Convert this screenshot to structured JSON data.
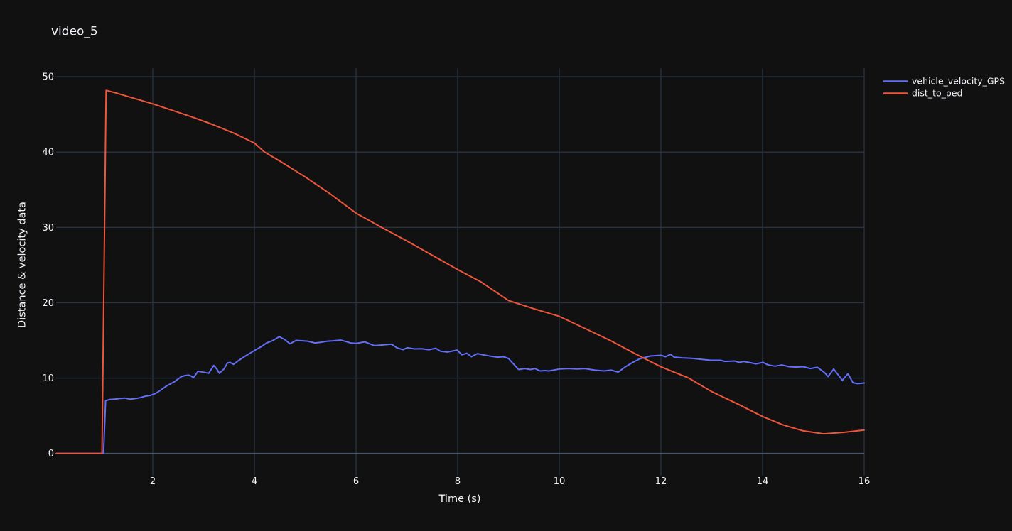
{
  "title": "video_5",
  "axes": {
    "x_title": "Time (s)",
    "y_title": "Distance & velocity data"
  },
  "legend": {
    "items": [
      {
        "label": "vehicle_velocity_GPS",
        "color": "#636efa"
      },
      {
        "label": "dist_to_ped",
        "color": "#ef553b"
      }
    ]
  },
  "chart_data": {
    "type": "line",
    "title": "video_5",
    "xlabel": "Time (s)",
    "ylabel": "Distance & velocity data",
    "xlim": [
      0.1,
      16
    ],
    "ylim": [
      -2.92,
      51.1
    ],
    "x_ticks": [
      2,
      4,
      6,
      8,
      10,
      12,
      14,
      16
    ],
    "y_ticks": [
      0,
      10,
      20,
      30,
      40,
      50
    ],
    "grid": true,
    "legend_position": "top-right-outside",
    "colors": {
      "background": "#111111",
      "grid": "#283442",
      "zeroline": "#46556a",
      "text": "#f2f5fa"
    },
    "series": [
      {
        "name": "vehicle_velocity_GPS",
        "color": "#636efa",
        "points": [
          [
            0.1,
            0
          ],
          [
            1.03,
            0
          ],
          [
            1.07,
            7.0
          ],
          [
            1.15,
            7.15
          ],
          [
            1.25,
            7.2
          ],
          [
            1.35,
            7.3
          ],
          [
            1.45,
            7.35
          ],
          [
            1.55,
            7.2
          ],
          [
            1.65,
            7.28
          ],
          [
            1.75,
            7.4
          ],
          [
            1.85,
            7.6
          ],
          [
            1.95,
            7.7
          ],
          [
            2.05,
            7.95
          ],
          [
            2.15,
            8.38
          ],
          [
            2.28,
            9.0
          ],
          [
            2.42,
            9.5
          ],
          [
            2.56,
            10.2
          ],
          [
            2.63,
            10.33
          ],
          [
            2.7,
            10.4
          ],
          [
            2.76,
            10.26
          ],
          [
            2.8,
            10.05
          ],
          [
            2.89,
            10.9
          ],
          [
            2.96,
            10.83
          ],
          [
            3.03,
            10.73
          ],
          [
            3.1,
            10.64
          ],
          [
            3.2,
            11.68
          ],
          [
            3.26,
            11.2
          ],
          [
            3.31,
            10.64
          ],
          [
            3.4,
            11.2
          ],
          [
            3.47,
            12.0
          ],
          [
            3.52,
            12.08
          ],
          [
            3.59,
            11.83
          ],
          [
            3.68,
            12.3
          ],
          [
            3.82,
            12.93
          ],
          [
            4.0,
            13.65
          ],
          [
            4.14,
            14.2
          ],
          [
            4.24,
            14.66
          ],
          [
            4.35,
            14.95
          ],
          [
            4.49,
            15.5
          ],
          [
            4.6,
            15.1
          ],
          [
            4.7,
            14.55
          ],
          [
            4.82,
            15.0
          ],
          [
            4.95,
            14.95
          ],
          [
            5.05,
            14.9
          ],
          [
            5.19,
            14.66
          ],
          [
            5.3,
            14.75
          ],
          [
            5.43,
            14.9
          ],
          [
            5.55,
            14.95
          ],
          [
            5.7,
            15.04
          ],
          [
            5.89,
            14.66
          ],
          [
            6.0,
            14.6
          ],
          [
            6.17,
            14.8
          ],
          [
            6.36,
            14.3
          ],
          [
            6.55,
            14.42
          ],
          [
            6.7,
            14.5
          ],
          [
            6.8,
            14.03
          ],
          [
            6.92,
            13.77
          ],
          [
            7.01,
            14.03
          ],
          [
            7.15,
            13.87
          ],
          [
            7.29,
            13.9
          ],
          [
            7.43,
            13.77
          ],
          [
            7.57,
            13.96
          ],
          [
            7.66,
            13.56
          ],
          [
            7.8,
            13.46
          ],
          [
            7.99,
            13.72
          ],
          [
            8.08,
            13.09
          ],
          [
            8.18,
            13.3
          ],
          [
            8.27,
            12.83
          ],
          [
            8.39,
            13.25
          ],
          [
            8.5,
            13.09
          ],
          [
            8.65,
            12.9
          ],
          [
            8.78,
            12.78
          ],
          [
            8.9,
            12.83
          ],
          [
            9.0,
            12.6
          ],
          [
            9.2,
            11.14
          ],
          [
            9.32,
            11.27
          ],
          [
            9.43,
            11.14
          ],
          [
            9.52,
            11.27
          ],
          [
            9.62,
            10.95
          ],
          [
            9.71,
            11.0
          ],
          [
            9.8,
            10.95
          ],
          [
            10.0,
            11.2
          ],
          [
            10.18,
            11.27
          ],
          [
            10.35,
            11.2
          ],
          [
            10.5,
            11.27
          ],
          [
            10.7,
            11.05
          ],
          [
            10.88,
            10.95
          ],
          [
            11.02,
            11.05
          ],
          [
            11.16,
            10.8
          ],
          [
            11.3,
            11.5
          ],
          [
            11.45,
            12.1
          ],
          [
            11.58,
            12.55
          ],
          [
            11.79,
            12.93
          ],
          [
            12.0,
            13.02
          ],
          [
            12.09,
            12.83
          ],
          [
            12.19,
            13.15
          ],
          [
            12.26,
            12.78
          ],
          [
            12.42,
            12.68
          ],
          [
            12.61,
            12.62
          ],
          [
            12.84,
            12.46
          ],
          [
            12.98,
            12.36
          ],
          [
            13.17,
            12.36
          ],
          [
            13.26,
            12.21
          ],
          [
            13.45,
            12.27
          ],
          [
            13.54,
            12.08
          ],
          [
            13.63,
            12.21
          ],
          [
            13.87,
            11.89
          ],
          [
            14.01,
            12.08
          ],
          [
            14.1,
            11.77
          ],
          [
            14.24,
            11.58
          ],
          [
            14.38,
            11.74
          ],
          [
            14.52,
            11.52
          ],
          [
            14.66,
            11.46
          ],
          [
            14.8,
            11.52
          ],
          [
            14.94,
            11.27
          ],
          [
            15.08,
            11.43
          ],
          [
            15.22,
            10.73
          ],
          [
            15.29,
            10.2
          ],
          [
            15.4,
            11.2
          ],
          [
            15.57,
            9.7
          ],
          [
            15.68,
            10.57
          ],
          [
            15.78,
            9.39
          ],
          [
            15.87,
            9.26
          ],
          [
            16.0,
            9.35
          ]
        ]
      },
      {
        "name": "dist_to_ped",
        "color": "#ef553b",
        "points": [
          [
            0.1,
            0
          ],
          [
            1.0,
            0
          ],
          [
            1.08,
            48.2
          ],
          [
            1.3,
            47.8
          ],
          [
            1.6,
            47.2
          ],
          [
            2.0,
            46.4
          ],
          [
            2.4,
            45.5
          ],
          [
            2.8,
            44.6
          ],
          [
            3.2,
            43.6
          ],
          [
            3.6,
            42.5
          ],
          [
            4.0,
            41.2
          ],
          [
            4.2,
            40.0
          ],
          [
            4.5,
            38.8
          ],
          [
            5.0,
            36.7
          ],
          [
            5.5,
            34.4
          ],
          [
            6.0,
            31.9
          ],
          [
            6.5,
            30.0
          ],
          [
            7.0,
            28.2
          ],
          [
            7.5,
            26.3
          ],
          [
            8.0,
            24.4
          ],
          [
            8.45,
            22.8
          ],
          [
            9.0,
            20.3
          ],
          [
            9.5,
            19.2
          ],
          [
            10.0,
            18.2
          ],
          [
            10.5,
            16.6
          ],
          [
            11.0,
            15.0
          ],
          [
            11.5,
            13.2
          ],
          [
            12.0,
            11.5
          ],
          [
            12.55,
            10.0
          ],
          [
            13.0,
            8.2
          ],
          [
            13.5,
            6.6
          ],
          [
            14.0,
            4.9
          ],
          [
            14.4,
            3.8
          ],
          [
            14.8,
            3.0
          ],
          [
            15.2,
            2.6
          ],
          [
            15.6,
            2.8
          ],
          [
            16.0,
            3.1
          ]
        ]
      }
    ]
  }
}
